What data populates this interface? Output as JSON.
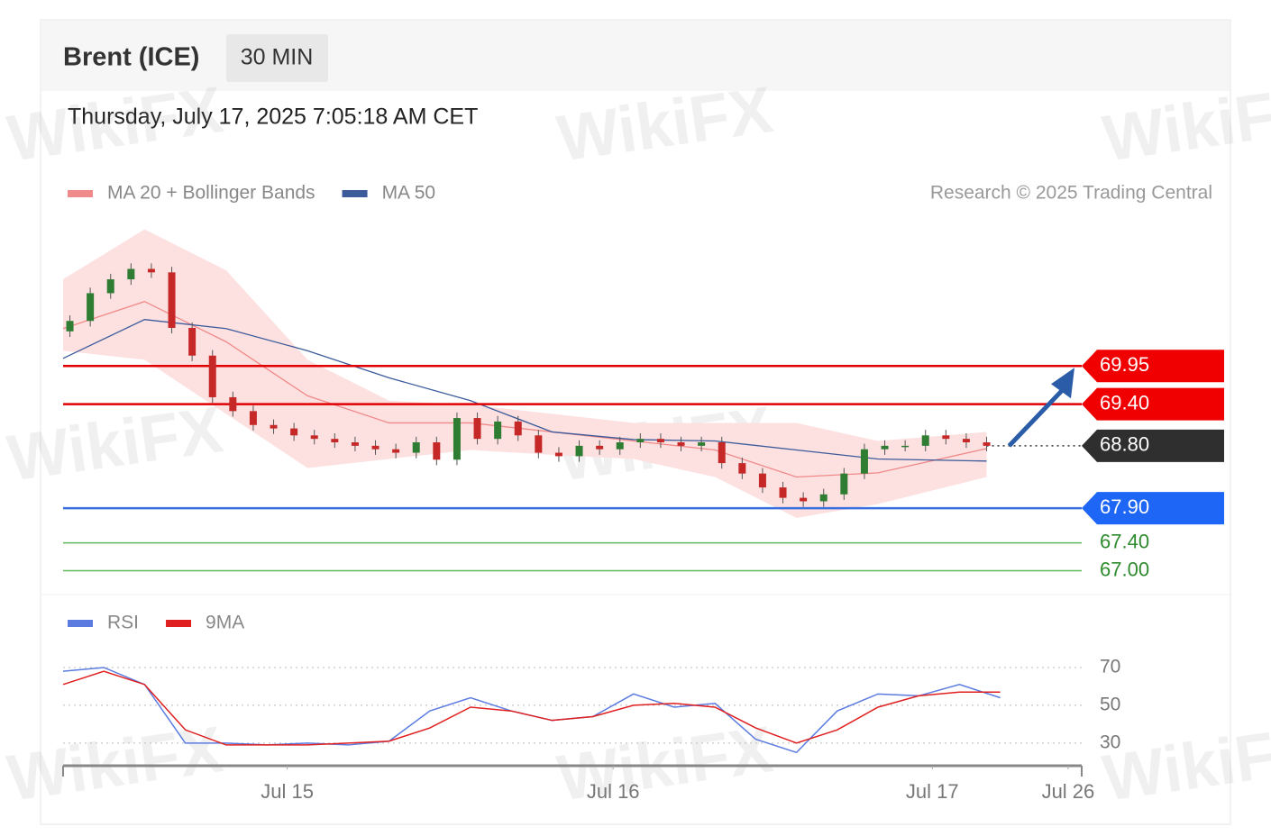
{
  "header": {
    "title": "Brent (ICE)",
    "interval": "30 MIN",
    "date": "Thursday, July 17, 2025 7:05:18 AM CET",
    "credit": "Research © 2025 Trading Central",
    "watermark": "WikiFX"
  },
  "chart_data": {
    "type": "candlestick",
    "up_color": "#2e7d32",
    "down_color": "#c62828",
    "xlim": [
      0,
      75
    ],
    "xticks": [
      {
        "value": 16.5,
        "label": "Jul 15"
      },
      {
        "value": 40.5,
        "label": "Jul 16"
      },
      {
        "value": 64,
        "label": "Jul 17"
      },
      {
        "value": 74,
        "label": "Jul 26"
      }
    ],
    "ylim": [
      66.85,
      71.98
    ],
    "x": [
      0.5,
      2,
      3.5,
      5,
      6.5,
      8,
      9.5,
      11,
      12.5,
      14,
      15.5,
      17,
      18.5,
      20,
      21.5,
      23,
      24.5,
      26,
      27.5,
      29,
      30.5,
      32,
      33.5,
      35,
      36.5,
      38,
      39.5,
      41,
      42.5,
      44,
      45.5,
      47,
      48.5,
      50,
      51.5,
      53,
      54.5,
      56,
      57.5,
      59,
      60.5,
      62,
      63.5,
      65,
      66.5,
      68
    ],
    "open": [
      70.45,
      70.6,
      71.0,
      71.2,
      71.35,
      71.3,
      70.5,
      70.1,
      69.5,
      69.3,
      69.1,
      69.05,
      68.95,
      68.9,
      68.85,
      68.8,
      68.75,
      68.7,
      68.85,
      68.6,
      69.2,
      68.9,
      69.15,
      68.95,
      68.7,
      68.65,
      68.8,
      68.75,
      68.85,
      68.9,
      68.85,
      68.8,
      68.85,
      68.55,
      68.4,
      68.2,
      68.05,
      68.0,
      68.1,
      68.4,
      68.75,
      68.8,
      68.8,
      68.95,
      68.9,
      68.85
    ],
    "high": [
      70.68,
      71.08,
      71.28,
      71.43,
      71.43,
      71.38,
      70.58,
      70.18,
      69.58,
      69.38,
      69.18,
      69.13,
      69.03,
      68.98,
      68.93,
      68.88,
      68.83,
      68.93,
      68.93,
      69.28,
      69.28,
      69.23,
      69.23,
      69.03,
      68.78,
      68.88,
      68.88,
      68.93,
      68.98,
      68.98,
      68.93,
      68.93,
      68.93,
      68.63,
      68.48,
      68.28,
      68.13,
      68.18,
      68.48,
      68.83,
      68.88,
      68.88,
      69.03,
      69.03,
      68.98,
      68.93
    ],
    "low": [
      70.37,
      70.52,
      70.92,
      71.12,
      71.22,
      70.42,
      70.02,
      69.42,
      69.22,
      69.02,
      68.97,
      68.87,
      68.82,
      68.77,
      68.72,
      68.67,
      68.62,
      68.62,
      68.52,
      68.52,
      68.82,
      68.82,
      68.87,
      68.62,
      68.57,
      68.57,
      68.67,
      68.67,
      68.77,
      68.77,
      68.72,
      68.72,
      68.47,
      68.32,
      68.12,
      67.97,
      67.92,
      67.92,
      68.02,
      68.32,
      68.67,
      68.72,
      68.72,
      68.82,
      68.77,
      68.72
    ],
    "close": [
      70.6,
      71.0,
      71.2,
      71.35,
      71.3,
      70.5,
      70.1,
      69.5,
      69.3,
      69.1,
      69.05,
      68.95,
      68.9,
      68.85,
      68.8,
      68.75,
      68.7,
      68.85,
      68.6,
      69.2,
      68.9,
      69.15,
      68.95,
      68.7,
      68.65,
      68.8,
      68.75,
      68.85,
      68.9,
      68.85,
      68.8,
      68.85,
      68.55,
      68.4,
      68.2,
      68.05,
      68.0,
      68.1,
      68.4,
      68.75,
      68.8,
      68.8,
      68.95,
      68.9,
      68.85,
      68.8
    ],
    "indicator_x": [
      0,
      6,
      12,
      18,
      24,
      30,
      36,
      42,
      48,
      54,
      60,
      68
    ],
    "overlays": [
      {
        "name": "MA 20 + Bollinger Bands",
        "color": "#f08a8a",
        "band_color": "#fde0e0",
        "values": [
          70.49,
          70.88,
          70.3,
          69.52,
          69.13,
          69.13,
          69.0,
          68.87,
          68.74,
          68.35,
          68.41,
          68.76
        ],
        "upper": [
          71.2,
          71.92,
          71.33,
          70.04,
          69.45,
          69.39,
          69.26,
          69.13,
          69.13,
          69.13,
          68.87,
          69.0
        ],
        "lower": [
          70.17,
          70.04,
          69.26,
          68.48,
          68.61,
          68.74,
          68.67,
          68.61,
          68.35,
          67.76,
          67.96,
          68.35
        ]
      },
      {
        "name": "MA 50",
        "color": "#3b5b9a",
        "values": [
          70.06,
          70.62,
          70.49,
          70.17,
          69.78,
          69.45,
          69.0,
          68.89,
          68.87,
          68.74,
          68.61,
          68.58
        ]
      }
    ],
    "levels": [
      {
        "value": 69.95,
        "color": "#e00000",
        "fill": "#f00000"
      },
      {
        "value": 69.4,
        "label": "69.40",
        "color": "#e00000",
        "fill": "#f00000"
      },
      {
        "value": 68.8,
        "label": "68.80",
        "color": "#333333",
        "fill": "#2f2f2f",
        "dotted": true
      },
      {
        "value": 67.9,
        "label": "67.90",
        "color": "#3a6fe0",
        "fill": "#1e66f5"
      },
      {
        "value": 67.4,
        "label": "67.40",
        "color": "#5cb85c",
        "text_color": "#2e8b2e"
      },
      {
        "value": 67,
        "label": "67.00",
        "color": "#5cb85c",
        "text_color": "#2e8b2e"
      }
    ],
    "rsi": {
      "ylim": [
        18,
        80
      ],
      "yticks": [
        70,
        50,
        30
      ],
      "x": [
        0,
        3,
        6,
        9,
        12,
        15,
        18,
        21,
        24,
        27,
        30,
        33,
        36,
        39,
        42,
        45,
        48,
        51,
        54,
        57,
        60,
        63,
        66,
        69
      ],
      "series": [
        {
          "name": "RSI",
          "color": "#5b7be0",
          "values": [
            68,
            70,
            61,
            30,
            30,
            29,
            30,
            29,
            31,
            47,
            54,
            47,
            42,
            44,
            56,
            49,
            51,
            32,
            25,
            47,
            56,
            55,
            61,
            54
          ]
        },
        {
          "name": "9MA",
          "color": "#e02020",
          "values": [
            61,
            68,
            61,
            37,
            29,
            29,
            29,
            30,
            31,
            38,
            49,
            47,
            42,
            44,
            50,
            51,
            49,
            38,
            30,
            37,
            49,
            55,
            57,
            57
          ]
        }
      ]
    }
  }
}
